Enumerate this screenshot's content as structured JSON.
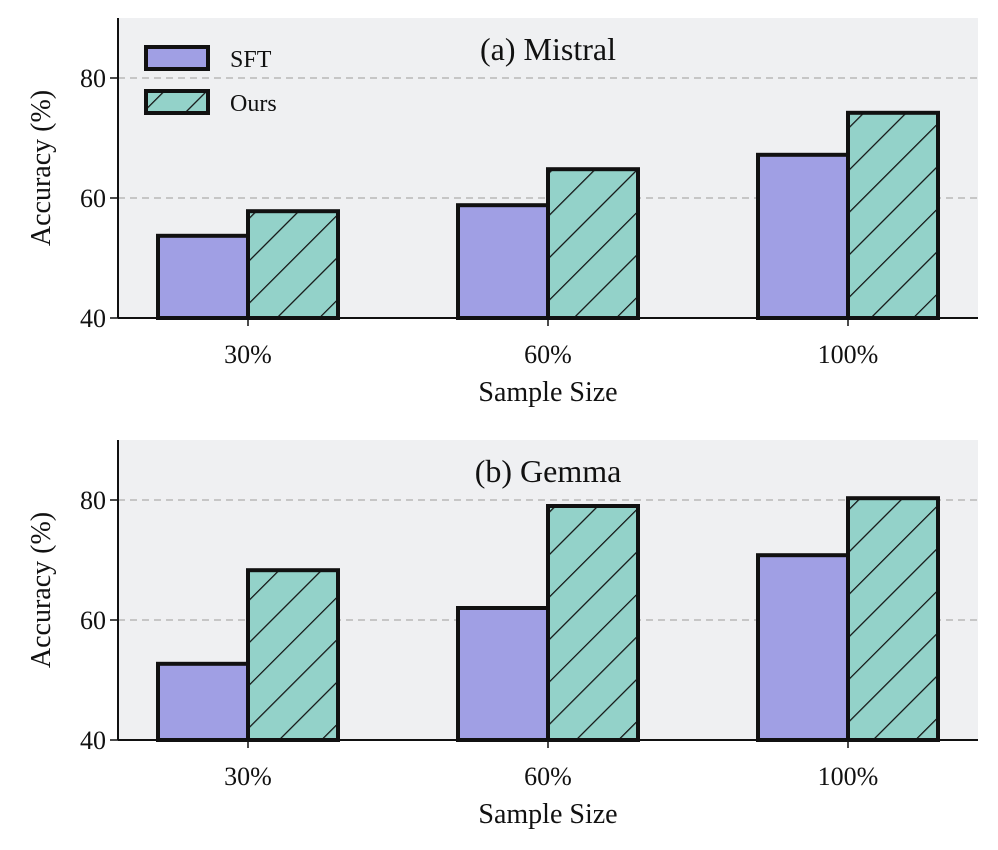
{
  "chart_data": [
    {
      "type": "bar",
      "title": "(a) Mistral",
      "xlabel": "Sample Size",
      "ylabel": "Accuracy (%)",
      "categories": [
        "30%",
        "60%",
        "100%"
      ],
      "ylim": [
        40,
        90
      ],
      "yticks": [
        40,
        60,
        80
      ],
      "grid": "horizontal dashed",
      "legend": "top-left",
      "series": [
        {
          "name": "SFT",
          "values": [
            53.7,
            58.8,
            67.2
          ],
          "color": "#a09fe4",
          "hatch": "none"
        },
        {
          "name": "Ours",
          "values": [
            57.8,
            64.8,
            74.2
          ],
          "color": "#93d2c9",
          "hatch": "diagonal"
        }
      ]
    },
    {
      "type": "bar",
      "title": "(b) Gemma",
      "xlabel": "Sample Size",
      "ylabel": "Accuracy (%)",
      "categories": [
        "30%",
        "60%",
        "100%"
      ],
      "ylim": [
        40,
        90
      ],
      "yticks": [
        40,
        60,
        80
      ],
      "grid": "horizontal dashed",
      "series": [
        {
          "name": "SFT",
          "values": [
            52.7,
            62.0,
            70.8
          ],
          "color": "#a09fe4",
          "hatch": "none"
        },
        {
          "name": "Ours",
          "values": [
            68.3,
            79.0,
            80.3
          ],
          "color": "#93d2c9",
          "hatch": "diagonal"
        }
      ]
    }
  ]
}
